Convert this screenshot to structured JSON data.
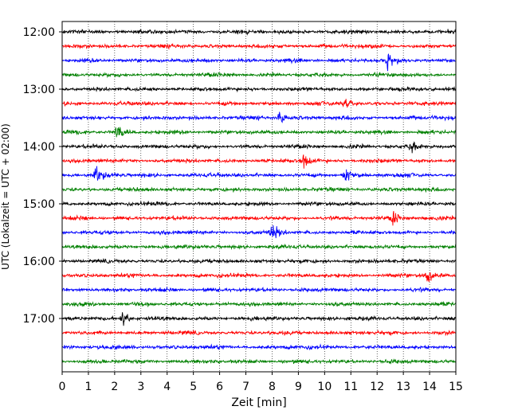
{
  "chart_data": {
    "type": "line",
    "title": "",
    "xlabel": "Zeit  [min]",
    "ylabel": "UTC (Lokalzeit = UTC + 02:00)",
    "xlim": [
      0,
      15
    ],
    "x_ticks": [
      0,
      1,
      2,
      3,
      4,
      5,
      6,
      7,
      8,
      9,
      10,
      11,
      12,
      13,
      14,
      15
    ],
    "y_tick_labels": [
      "12:00",
      "13:00",
      "14:00",
      "15:00",
      "16:00",
      "17:00"
    ],
    "grid": "vertical dotted at each minute",
    "legend": "none",
    "line_start_times": [
      "12:00",
      "12:15",
      "12:30",
      "12:45",
      "13:00",
      "13:15",
      "13:30",
      "13:45",
      "14:00",
      "14:15",
      "14:30",
      "14:45",
      "15:00",
      "15:15",
      "15:30",
      "15:45",
      "16:00",
      "16:15",
      "16:30",
      "16:45",
      "17:00",
      "17:15",
      "17:30",
      "17:45"
    ],
    "trace_color_cycle": [
      "#000000",
      "#ff0000",
      "#0000ff",
      "#008000"
    ],
    "events": [
      {
        "line": "12:30",
        "minute": 12.4,
        "amplitude": 7
      },
      {
        "line": "13:15",
        "minute": 10.8,
        "amplitude": 6
      },
      {
        "line": "13:30",
        "minute": 8.3,
        "amplitude": 5
      },
      {
        "line": "13:45",
        "minute": 2.1,
        "amplitude": 8
      },
      {
        "line": "14:00",
        "minute": 13.3,
        "amplitude": 5
      },
      {
        "line": "14:15",
        "minute": 9.2,
        "amplitude": 7
      },
      {
        "line": "14:30",
        "minute": 1.3,
        "amplitude": 7
      },
      {
        "line": "14:30",
        "minute": 10.8,
        "amplitude": 8
      },
      {
        "line": "15:15",
        "minute": 12.6,
        "amplitude": 6
      },
      {
        "line": "15:30",
        "minute": 8.0,
        "amplitude": 8
      },
      {
        "line": "16:15",
        "minute": 13.9,
        "amplitude": 6
      },
      {
        "line": "17:00",
        "minute": 2.3,
        "amplitude": 8
      }
    ]
  }
}
